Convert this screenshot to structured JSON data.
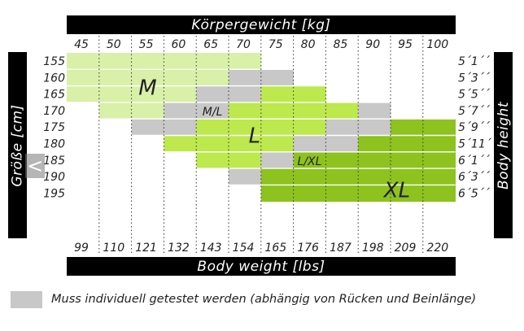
{
  "chart_data": {
    "type": "heatmap",
    "title_top": "Körpergewicht [kg]",
    "xlabel_bottom": "Body weight [lbs]",
    "ylabel_left": "Größe [cm]",
    "ylabel_right": "Body height",
    "x_kg": [
      "45",
      "50",
      "55",
      "60",
      "65",
      "70",
      "75",
      "80",
      "85",
      "90",
      "95",
      "100"
    ],
    "x_lbs": [
      "99",
      "110",
      "121",
      "132",
      "143",
      "154",
      "165",
      "176",
      "187",
      "198",
      "209",
      "220"
    ],
    "y_cm": [
      "155",
      "160",
      "165",
      "170",
      "175",
      "180",
      "185",
      "190",
      "195"
    ],
    "y_ft": [
      "5´1´´",
      "5´3´´",
      "5´5´´",
      "5´7´´",
      "5´9´´",
      "5´11´´",
      "6´1´´",
      "6´3´´",
      "6´5´´"
    ],
    "cells": [
      [
        "M",
        "M",
        "M",
        "M",
        "M",
        "M",
        "",
        "",
        "",
        "",
        "",
        ""
      ],
      [
        "M",
        "M",
        "M",
        "M",
        "M",
        "T",
        "T",
        "",
        "",
        "",
        "",
        ""
      ],
      [
        "M",
        "M",
        "M",
        "M",
        "T",
        "T",
        "L",
        "L",
        "",
        "",
        "",
        ""
      ],
      [
        "",
        "M",
        "M",
        "T",
        "T",
        "L",
        "L",
        "L",
        "L",
        "T",
        "",
        ""
      ],
      [
        "",
        "",
        "T",
        "T",
        "L",
        "L",
        "L",
        "L",
        "T",
        "T",
        "XL",
        "XL"
      ],
      [
        "",
        "",
        "",
        "L",
        "L",
        "L",
        "L",
        "T",
        "T",
        "XL",
        "XL",
        "XL"
      ],
      [
        "",
        "",
        "",
        "",
        "L",
        "L",
        "T",
        "XL",
        "XL",
        "XL",
        "XL",
        "XL"
      ],
      [
        "",
        "",
        "",
        "",
        "",
        "T",
        "XL",
        "XL",
        "XL",
        "XL",
        "XL",
        "XL"
      ],
      [
        "",
        "",
        "",
        "",
        "",
        "",
        "XL",
        "XL",
        "XL",
        "XL",
        "XL",
        "XL"
      ]
    ],
    "zone_labels": [
      "M",
      "M/L",
      "L",
      "L/XL",
      "XL"
    ],
    "colors": {
      "M": "#d8f0a8",
      "L": "#bde84e",
      "XL": "#8dc21f",
      "T": "#c8c8c8"
    },
    "grid": true
  },
  "legend": {
    "text": "Muss individuell getestet werden (abhängig von Rücken und Beinlänge)",
    "swatch_color": "#c8c8c8"
  },
  "controls": {
    "back_arrow": "<"
  }
}
